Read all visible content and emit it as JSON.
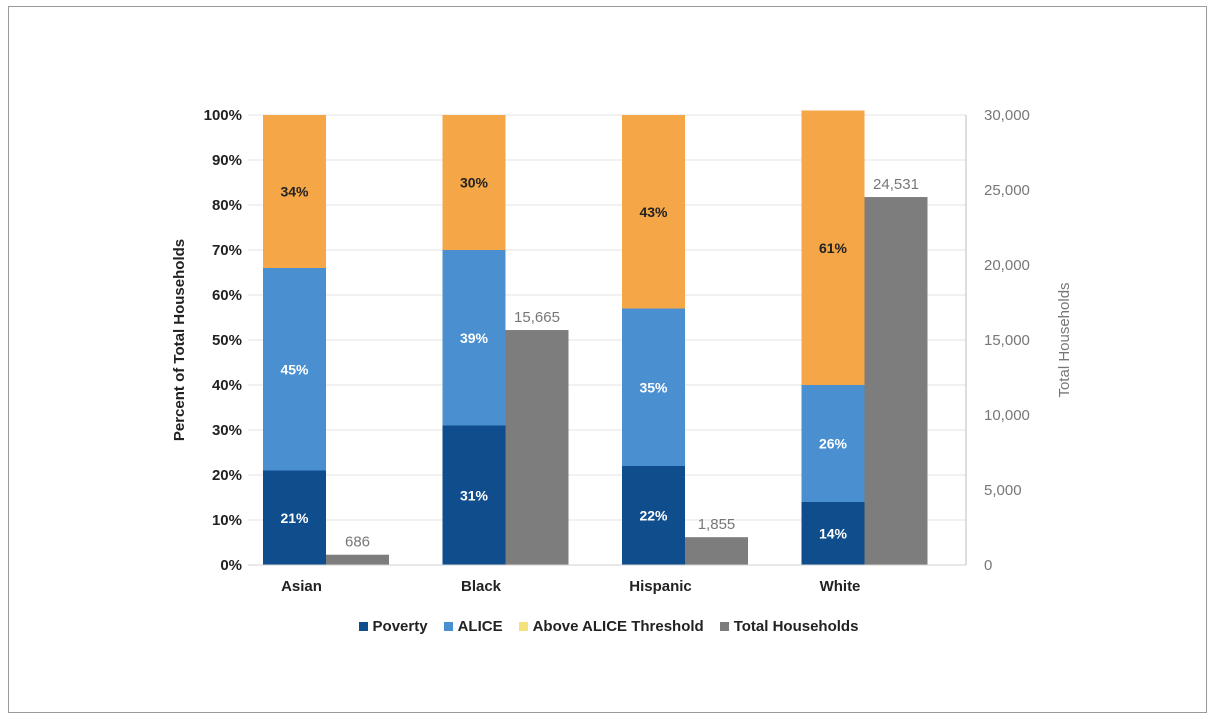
{
  "chart_data": {
    "type": "bar",
    "categories": [
      "Asian",
      "Black",
      "Hispanic",
      "White"
    ],
    "series": [
      {
        "name": "Poverty",
        "values": [
          21,
          31,
          22,
          14
        ],
        "labels": [
          "21%",
          "31%",
          "22%",
          "14%"
        ],
        "color": "#0f4d8c"
      },
      {
        "name": "ALICE",
        "values": [
          45,
          39,
          35,
          26
        ],
        "labels": [
          "45%",
          "39%",
          "35%",
          "26%"
        ],
        "color": "#4a90d0"
      },
      {
        "name": "Above ALICE Threshold",
        "values": [
          34,
          30,
          43,
          61
        ],
        "labels": [
          "34%",
          "30%",
          "43%",
          "61%"
        ],
        "color": "#f5a646"
      },
      {
        "name": "Total Households",
        "values": [
          686,
          15665,
          1855,
          24531
        ],
        "labels": [
          "686",
          "15,665",
          "1,855",
          "24,531"
        ],
        "color": "#7d7d7d",
        "axis": "right"
      }
    ],
    "ylabel": "Percent of Total Households",
    "ylabel_right": "Total Households",
    "ylim": [
      0,
      100
    ],
    "ylim_right": [
      0,
      30000
    ],
    "yticks": [
      "0%",
      "10%",
      "20%",
      "30%",
      "40%",
      "50%",
      "60%",
      "70%",
      "80%",
      "90%",
      "100%"
    ],
    "yticks_right": [
      "0",
      "5,000",
      "10,000",
      "15,000",
      "20,000",
      "25,000",
      "30,000"
    ],
    "legend_position": "bottom",
    "legend_colors": [
      "#0f4d8c",
      "#4a90d0",
      "#f5e27a",
      "#7d7d7d"
    ]
  }
}
